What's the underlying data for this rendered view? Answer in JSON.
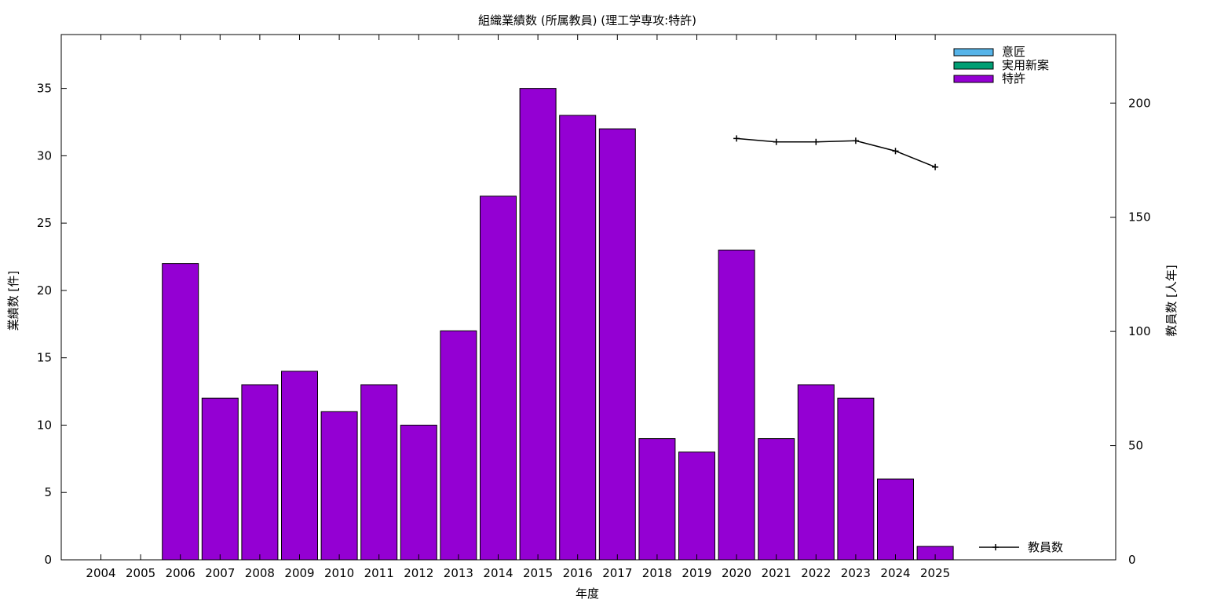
{
  "chart_data": {
    "type": "bar",
    "title": "組織業績数 (所属教員) (理工学専攻:特許)",
    "xlabel": "年度",
    "ylabel": "業績数 [件]",
    "y2label": "教員数 [人年]",
    "categories": [
      "2004",
      "2005",
      "2006",
      "2007",
      "2008",
      "2009",
      "2010",
      "2011",
      "2012",
      "2013",
      "2014",
      "2015",
      "2016",
      "2017",
      "2018",
      "2019",
      "2020",
      "2021",
      "2022",
      "2023",
      "2024",
      "2025"
    ],
    "ylim": [
      0,
      39
    ],
    "y_ticks": [
      0,
      5,
      10,
      15,
      20,
      25,
      30,
      35
    ],
    "y2lim": [
      0,
      230
    ],
    "y2_ticks": [
      0,
      50,
      100,
      150,
      200
    ],
    "legend_position": "top-right",
    "grid": false,
    "series": [
      {
        "name": "意匠",
        "kind": "bar",
        "color": "#56b4e9",
        "values": [
          0,
          0,
          0,
          0,
          0,
          0,
          0,
          0,
          0,
          0,
          0,
          0,
          0,
          0,
          0,
          0,
          0,
          0,
          0,
          0,
          0,
          0
        ]
      },
      {
        "name": "実用新案",
        "kind": "bar",
        "color": "#009e73",
        "values": [
          0,
          0,
          0,
          0,
          0,
          0,
          0,
          0,
          0,
          0,
          0,
          0,
          0,
          0,
          0,
          0,
          0,
          0,
          0,
          0,
          0,
          0
        ]
      },
      {
        "name": "特許",
        "kind": "bar",
        "color": "#9400d3",
        "values": [
          0,
          0,
          22,
          12,
          13,
          14,
          11,
          13,
          10,
          17,
          27,
          35,
          33,
          32,
          9,
          8,
          23,
          9,
          13,
          12,
          6,
          1
        ]
      },
      {
        "name": "教員数",
        "kind": "line",
        "axis": "y2",
        "color": "#000000",
        "x": [
          "2020",
          "2021",
          "2022",
          "2023",
          "2024",
          "2025"
        ],
        "values": [
          184.5,
          183,
          183,
          183.5,
          179,
          172
        ]
      }
    ]
  }
}
